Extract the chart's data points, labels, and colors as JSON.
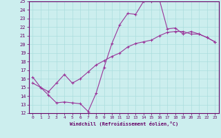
{
  "xlabel": "Windchill (Refroidissement éolien,°C)",
  "xlim": [
    -0.5,
    23.5
  ],
  "ylim": [
    12,
    25
  ],
  "yticks": [
    12,
    13,
    14,
    15,
    16,
    17,
    18,
    19,
    20,
    21,
    22,
    23,
    24,
    25
  ],
  "xticks": [
    0,
    1,
    2,
    3,
    4,
    5,
    6,
    7,
    8,
    9,
    10,
    11,
    12,
    13,
    14,
    15,
    16,
    17,
    18,
    19,
    20,
    21,
    22,
    23
  ],
  "line1_x": [
    0,
    1,
    2,
    3,
    4,
    5,
    6,
    7,
    8,
    9,
    10,
    11,
    12,
    13,
    14,
    15,
    16,
    17,
    18,
    19,
    20,
    21,
    22,
    23
  ],
  "line1_y": [
    16.2,
    15.0,
    14.1,
    13.2,
    13.3,
    13.2,
    13.1,
    12.2,
    14.3,
    17.3,
    20.1,
    22.3,
    23.6,
    23.5,
    25.0,
    25.0,
    25.2,
    21.8,
    21.9,
    21.2,
    21.5,
    21.2,
    20.8,
    20.3
  ],
  "line2_x": [
    0,
    1,
    2,
    3,
    4,
    5,
    6,
    7,
    8,
    9,
    10,
    11,
    12,
    13,
    14,
    15,
    16,
    17,
    18,
    19,
    20,
    21,
    22,
    23
  ],
  "line2_y": [
    15.5,
    15.0,
    14.5,
    15.5,
    16.5,
    15.5,
    16.0,
    16.8,
    17.6,
    18.1,
    18.6,
    19.0,
    19.7,
    20.1,
    20.3,
    20.5,
    21.0,
    21.4,
    21.5,
    21.5,
    21.2,
    21.2,
    20.8,
    20.3
  ],
  "line_color": "#993399",
  "bg_color": "#cceeee",
  "grid_color": "#aadddd",
  "axis_color": "#660066",
  "marker": "+",
  "markersize": 3,
  "linewidth": 0.8
}
